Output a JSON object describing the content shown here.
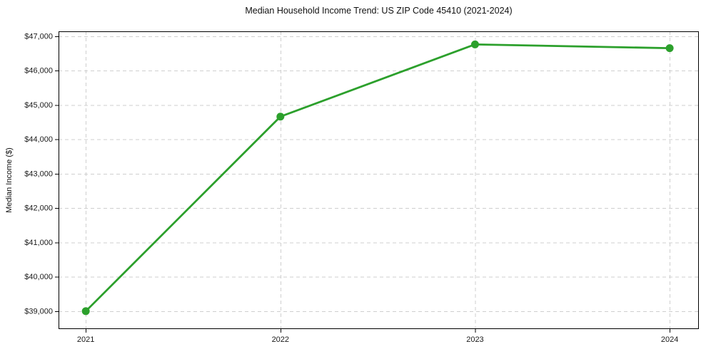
{
  "chart_data": {
    "type": "line",
    "title": "Median Household Income Trend: US ZIP Code 45410 (2021-2024)",
    "xlabel": "",
    "ylabel": "Median Income ($)",
    "x": [
      2021,
      2022,
      2023,
      2024
    ],
    "series": [
      {
        "name": "Median Household Income",
        "values": [
          39000,
          44660,
          46760,
          46650
        ]
      }
    ],
    "xtick_labels": [
      "2021",
      "2022",
      "2023",
      "2024"
    ],
    "yticks": [
      39000,
      40000,
      41000,
      42000,
      43000,
      44000,
      45000,
      46000,
      47000
    ],
    "ytick_labels": [
      "$39,000",
      "$40,000",
      "$41,000",
      "$42,000",
      "$43,000",
      "$44,000",
      "$45,000",
      "$46,000",
      "$47,000"
    ],
    "xlim": [
      2020.86,
      2024.15
    ],
    "ylim": [
      38480,
      47140
    ],
    "grid": true,
    "grid_style": "dashed",
    "legend_position": "none",
    "line_color": "#2ca02c",
    "marker": "circle",
    "marker_color": "#2ca02c",
    "grid_color": "#cfcfcf",
    "axis_color": "#000000",
    "tick_label_color": "#1a1a1a",
    "background_color": "#ffffff"
  }
}
